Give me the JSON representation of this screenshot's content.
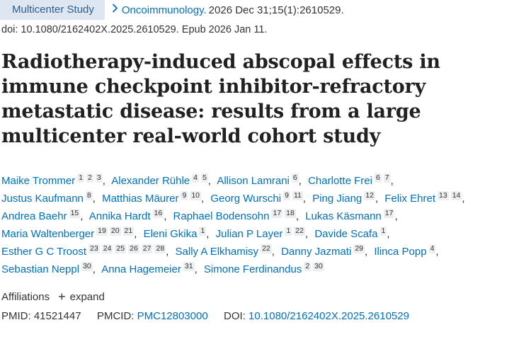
{
  "header": {
    "badge": "Multicenter Study",
    "chevron_icon": "chevron-right-icon",
    "journal": "Oncoimmunology.",
    "citation": "2026 Dec 31;15(1):2610529.",
    "doi_line": "doi: 10.1080/2162402X.2025.2610529. Epub 2026 Jan 11."
  },
  "title": "Radiotherapy-induced abscopal effects in immune checkpoint inhibitor-refractory metastatic disease: results from a large multicenter real-world cohort study",
  "authors": [
    {
      "name": "Maike Trommer",
      "affs": [
        "1",
        "2",
        "3"
      ]
    },
    {
      "name": "Alexander Rühle",
      "affs": [
        "4",
        "5"
      ]
    },
    {
      "name": "Allison Lamrani",
      "affs": [
        "6"
      ]
    },
    {
      "name": "Charlotte Frei",
      "affs": [
        "6",
        "7"
      ]
    },
    {
      "name": "Justus Kaufmann",
      "affs": [
        "8"
      ]
    },
    {
      "name": "Matthias Mäurer",
      "affs": [
        "9",
        "10"
      ]
    },
    {
      "name": "Georg Wurschi",
      "affs": [
        "9",
        "11"
      ]
    },
    {
      "name": "Ping Jiang",
      "affs": [
        "12"
      ]
    },
    {
      "name": "Felix Ehret",
      "affs": [
        "13",
        "14"
      ]
    },
    {
      "name": "Andrea Baehr",
      "affs": [
        "15"
      ]
    },
    {
      "name": "Annika Hardt",
      "affs": [
        "16"
      ]
    },
    {
      "name": "Raphael Bodensohn",
      "affs": [
        "17",
        "18"
      ]
    },
    {
      "name": "Lukas Käsmann",
      "affs": [
        "17"
      ]
    },
    {
      "name": "Maria Waltenberger",
      "affs": [
        "19",
        "20",
        "21"
      ]
    },
    {
      "name": "Eleni Gkika",
      "affs": [
        "1"
      ]
    },
    {
      "name": "Julian P Layer",
      "affs": [
        "1",
        "22"
      ]
    },
    {
      "name": "Davide Scafa",
      "affs": [
        "1"
      ]
    },
    {
      "name": "Esther G C Troost",
      "affs": [
        "23",
        "24",
        "25",
        "26",
        "27",
        "28"
      ]
    },
    {
      "name": "Sally A Elkhamisy",
      "affs": [
        "22"
      ]
    },
    {
      "name": "Danny Jazmati",
      "affs": [
        "29"
      ]
    },
    {
      "name": "Ilinca Popp",
      "affs": [
        "4"
      ]
    },
    {
      "name": "Sebastian Neppl",
      "affs": [
        "30"
      ]
    },
    {
      "name": "Anna Hagemeier",
      "affs": [
        "31"
      ]
    },
    {
      "name": "Simone Ferdinandus",
      "affs": [
        "2",
        "30"
      ]
    }
  ],
  "author_line_breaks_after": [
    3,
    8,
    12,
    16,
    20
  ],
  "affiliations": {
    "label": "Affiliations",
    "expand_icon": "plus-icon",
    "expand_label": "expand"
  },
  "identifiers": {
    "pmid_label": "PMID:",
    "pmid_value": "41521447",
    "pmcid_label": "PMCID:",
    "pmcid_value": "PMC12803000",
    "doi_label": "DOI:",
    "doi_value": "10.1080/2162402X.2025.2610529"
  }
}
